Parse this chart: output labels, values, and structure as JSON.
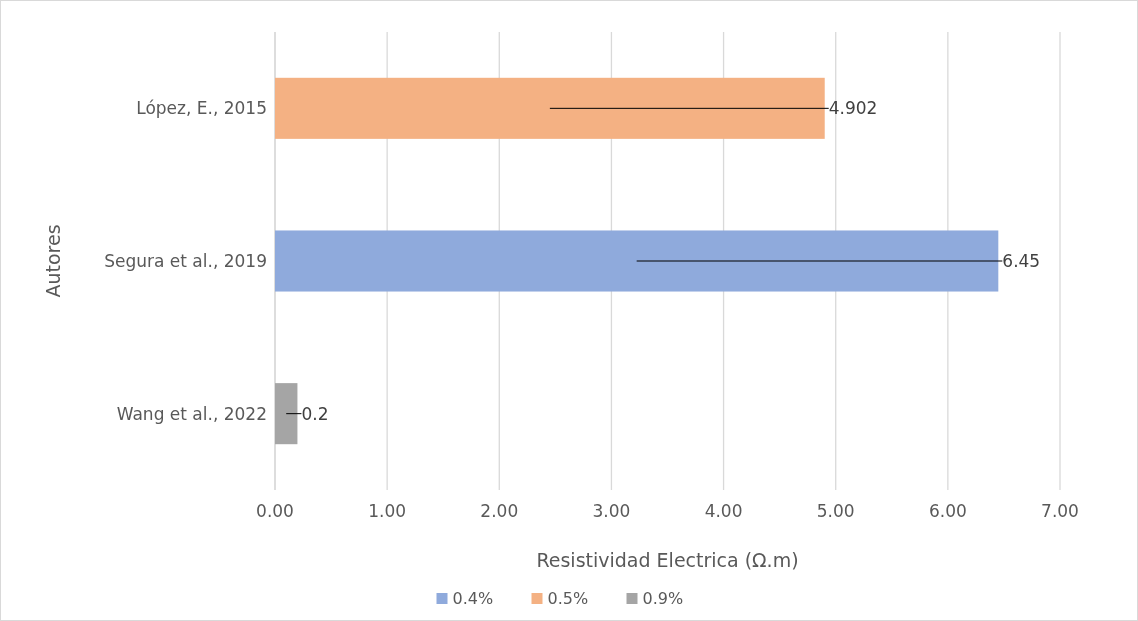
{
  "chart_data": {
    "type": "bar",
    "orientation": "horizontal",
    "stacked": true,
    "categories": [
      "López, E., 2015",
      "Segura et al., 2019",
      "Wang et al., 2022"
    ],
    "series": [
      {
        "name": "0.4%",
        "color": "#8faadc",
        "values": [
          null,
          6.45,
          null
        ]
      },
      {
        "name": "0.5%",
        "color": "#f4b183",
        "values": [
          4.902,
          null,
          null
        ]
      },
      {
        "name": "0.9%",
        "color": "#a5a5a5",
        "values": [
          null,
          null,
          0.2
        ]
      }
    ],
    "xlim": [
      0,
      7
    ],
    "xticks": [
      {
        "value": 0,
        "label": "0.00"
      },
      {
        "value": 1,
        "label": "1.00"
      },
      {
        "value": 2,
        "label": "2.00"
      },
      {
        "value": 3,
        "label": "3.00"
      },
      {
        "value": 4,
        "label": "4.00"
      },
      {
        "value": 5,
        "label": "5.00"
      },
      {
        "value": 6,
        "label": "6.00"
      },
      {
        "value": 7,
        "label": "7.00"
      }
    ],
    "xlabel": "Resistividad Electrica (Ω.m)",
    "ylabel": "Autores",
    "grid": "x",
    "legend": "bottom",
    "data_labels": true
  }
}
